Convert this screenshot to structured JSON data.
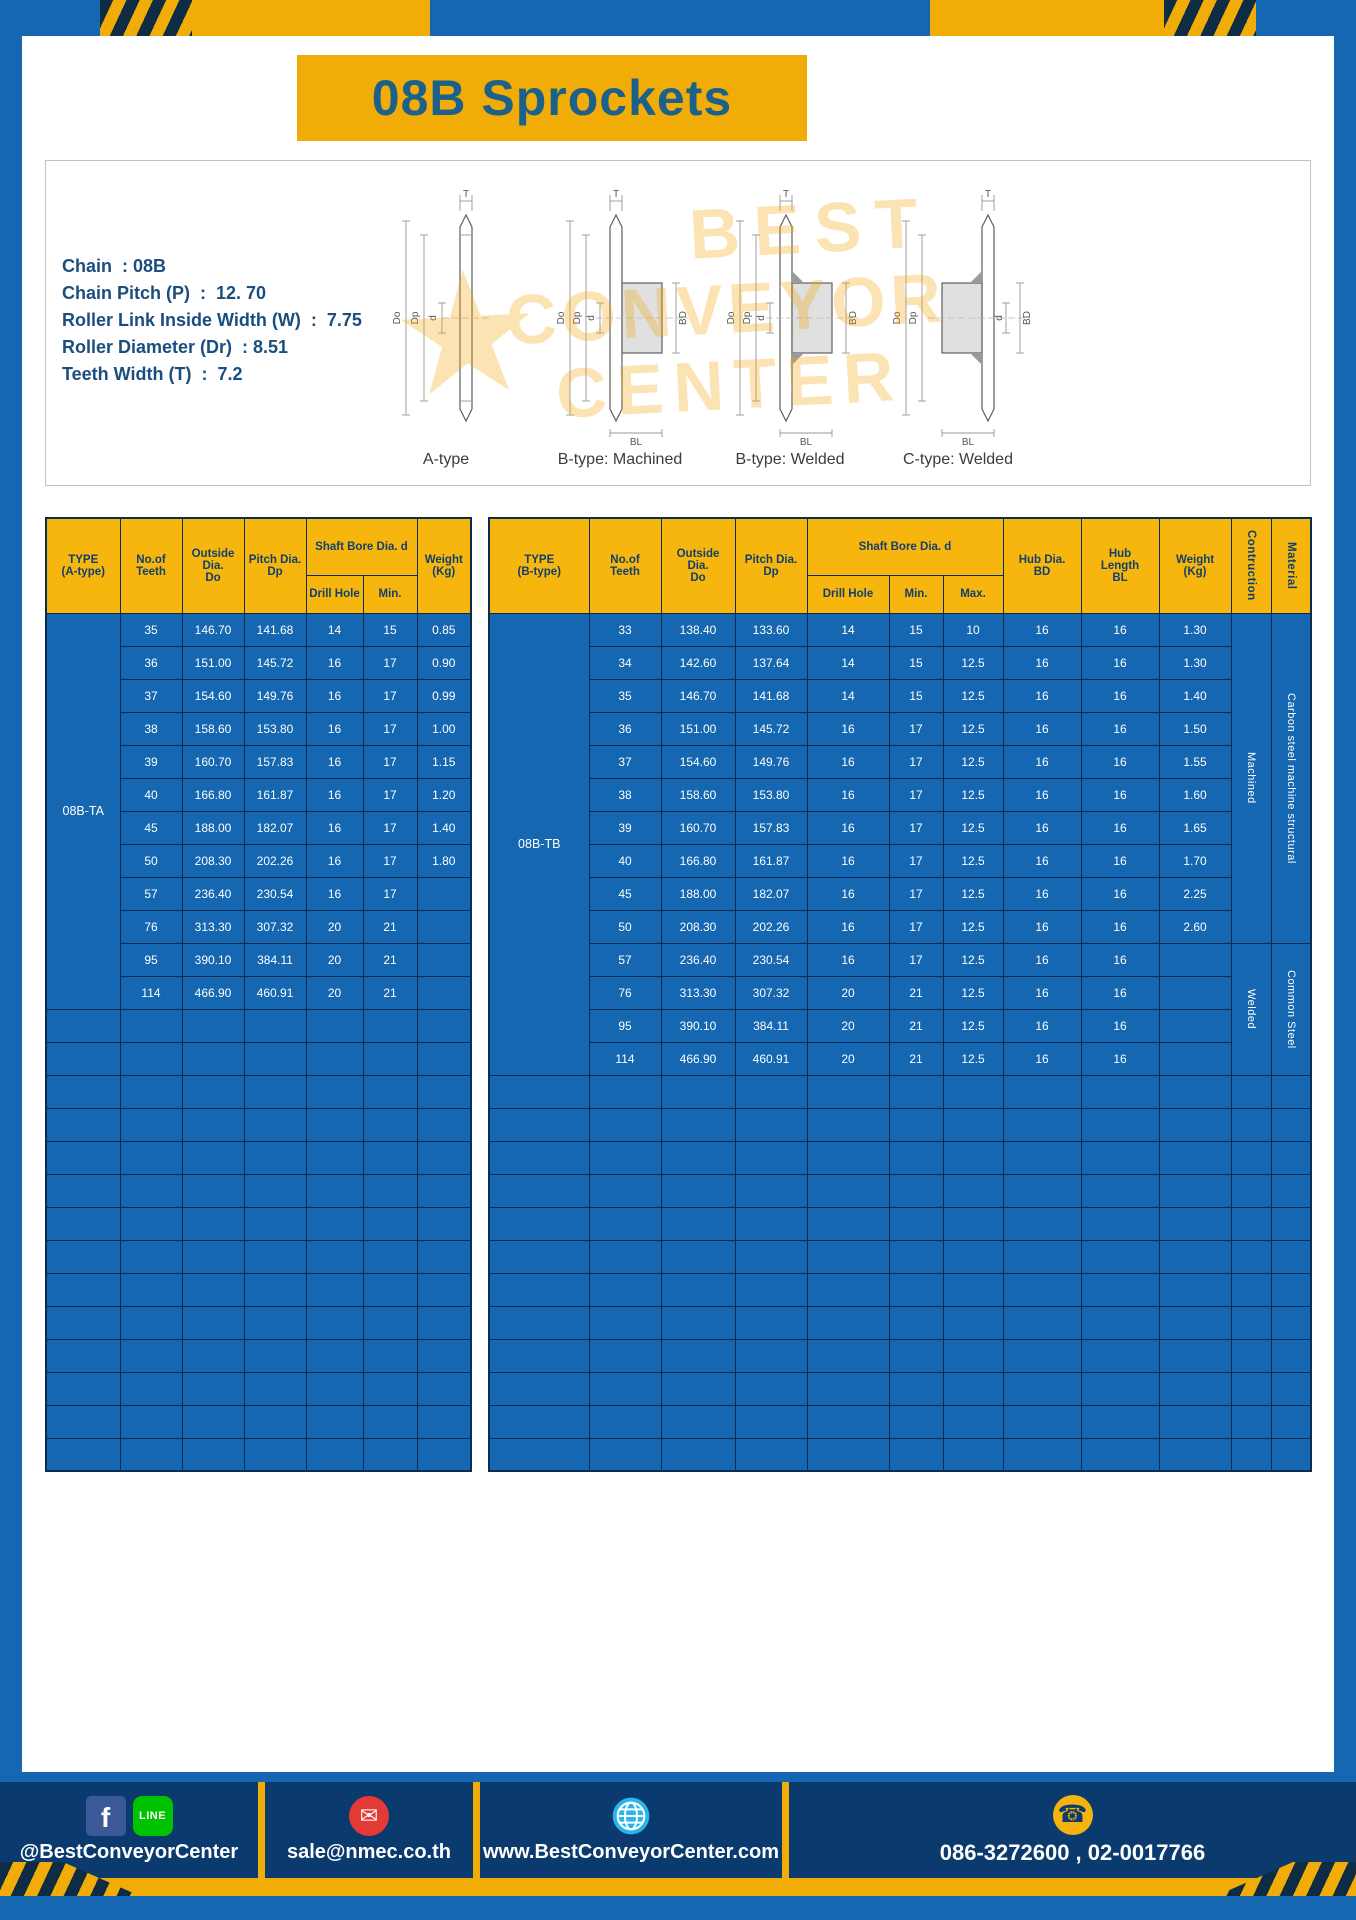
{
  "title": "08B Sprockets",
  "specs": {
    "line1": "Chain  : 08B",
    "line2": "Chain Pitch (P)  :  12. 70",
    "line3": "Roller Link Inside Width (W)  :  7.75",
    "line4": "Roller Diameter (Dr)  : 8.51",
    "line5": "Teeth Width (T)  :  7.2"
  },
  "diagrams": {
    "watermark_star": "★",
    "watermark_top": "BEST",
    "watermark_mid": "CONVEYOR",
    "watermark_bot": "CENTER",
    "dims": {
      "t": "T",
      "outer": "Do",
      "pitch": "Dp",
      "bore": "d",
      "hub_dia": "BD",
      "hub_len": "BL"
    },
    "captions": {
      "a": "A-type",
      "bm": "B-type: Machined",
      "bw": "B-type: Welded",
      "cw": "C-type: Welded"
    }
  },
  "table_a": {
    "header": {
      "type": "TYPE\n(A-type)",
      "teeth": "No.of\nTeeth",
      "outside": "Outside\nDia.\nDo",
      "pitch": "Pitch Dia.\nDp",
      "shaft": "Shaft Bore Dia. d",
      "drill": "Drill Hole",
      "min": "Min.",
      "weight": "Weight\n(Kg)"
    },
    "type_label": "08B-TA",
    "rows": [
      [
        "35",
        "146.70",
        "141.68",
        "14",
        "15",
        "0.85"
      ],
      [
        "36",
        "151.00",
        "145.72",
        "16",
        "17",
        "0.90"
      ],
      [
        "37",
        "154.60",
        "149.76",
        "16",
        "17",
        "0.99"
      ],
      [
        "38",
        "158.60",
        "153.80",
        "16",
        "17",
        "1.00"
      ],
      [
        "39",
        "160.70",
        "157.83",
        "16",
        "17",
        "1.15"
      ],
      [
        "40",
        "166.80",
        "161.87",
        "16",
        "17",
        "1.20"
      ],
      [
        "45",
        "188.00",
        "182.07",
        "16",
        "17",
        "1.40"
      ],
      [
        "50",
        "208.30",
        "202.26",
        "16",
        "17",
        "1.80"
      ],
      [
        "57",
        "236.40",
        "230.54",
        "16",
        "17",
        ""
      ],
      [
        "76",
        "313.30",
        "307.32",
        "20",
        "21",
        ""
      ],
      [
        "95",
        "390.10",
        "384.11",
        "20",
        "21",
        ""
      ],
      [
        "114",
        "466.90",
        "460.91",
        "20",
        "21",
        ""
      ]
    ],
    "empty_rows": 14
  },
  "table_b": {
    "header": {
      "type": "TYPE\n(B-type)",
      "teeth": "No.of\nTeeth",
      "outside": "Outside\nDia.\nDo",
      "pitch": "Pitch Dia.\nDp",
      "shaft": "Shaft Bore Dia. d",
      "drill": "Drill Hole",
      "min": "Min.",
      "max": "Max.",
      "hub_dia": "Hub Dia.\nBD",
      "hub_len": "Hub\nLength\nBL",
      "weight": "Weight\n(Kg)",
      "construction": "Contruction",
      "material": "Material"
    },
    "type_label": "08B-TB",
    "rows": [
      [
        "33",
        "138.40",
        "133.60",
        "14",
        "15",
        "10",
        "16",
        "16",
        "1.30"
      ],
      [
        "34",
        "142.60",
        "137.64",
        "14",
        "15",
        "12.5",
        "16",
        "16",
        "1.30"
      ],
      [
        "35",
        "146.70",
        "141.68",
        "14",
        "15",
        "12.5",
        "16",
        "16",
        "1.40"
      ],
      [
        "36",
        "151.00",
        "145.72",
        "16",
        "17",
        "12.5",
        "16",
        "16",
        "1.50"
      ],
      [
        "37",
        "154.60",
        "149.76",
        "16",
        "17",
        "12.5",
        "16",
        "16",
        "1.55"
      ],
      [
        "38",
        "158.60",
        "153.80",
        "16",
        "17",
        "12.5",
        "16",
        "16",
        "1.60"
      ],
      [
        "39",
        "160.70",
        "157.83",
        "16",
        "17",
        "12.5",
        "16",
        "16",
        "1.65"
      ],
      [
        "40",
        "166.80",
        "161.87",
        "16",
        "17",
        "12.5",
        "16",
        "16",
        "1.70"
      ],
      [
        "45",
        "188.00",
        "182.07",
        "16",
        "17",
        "12.5",
        "16",
        "16",
        "2.25"
      ],
      [
        "50",
        "208.30",
        "202.26",
        "16",
        "17",
        "12.5",
        "16",
        "16",
        "2.60"
      ],
      [
        "57",
        "236.40",
        "230.54",
        "16",
        "17",
        "12.5",
        "16",
        "16",
        ""
      ],
      [
        "76",
        "313.30",
        "307.32",
        "20",
        "21",
        "12.5",
        "16",
        "16",
        ""
      ],
      [
        "95",
        "390.10",
        "384.11",
        "20",
        "21",
        "12.5",
        "16",
        "16",
        ""
      ],
      [
        "114",
        "466.90",
        "460.91",
        "20",
        "21",
        "12.5",
        "16",
        "16",
        ""
      ]
    ],
    "construction_groups": [
      {
        "label": "Machined",
        "span": 10
      },
      {
        "label": "Welded",
        "span": 4
      }
    ],
    "material_groups": [
      {
        "label": "Carbon steel  machine structural",
        "span": 10
      },
      {
        "label": "Common  Steel",
        "span": 4
      }
    ],
    "empty_rows": 12
  },
  "footer": {
    "facebook_glyph": "f",
    "line_label": "LINE",
    "mail_glyph": "✉",
    "phone_glyph": "☎",
    "social_handle": "@BestConveyorCenter",
    "email": "sale@nmec.co.th",
    "website": "www.BestConveyorCenter.com",
    "phones": "086-3272600 , 02-0017766"
  }
}
